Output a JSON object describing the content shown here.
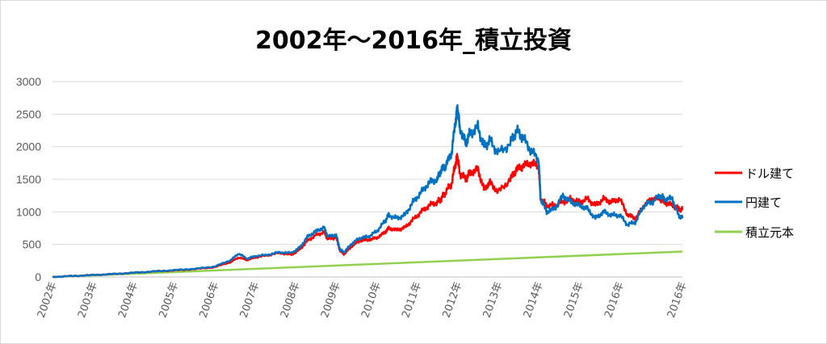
{
  "chart_data": {
    "type": "line",
    "title": "2002年～2016年_積立投資",
    "xlabel": "",
    "ylabel": "",
    "ylim": [
      0,
      3000
    ],
    "yticks": [
      "0",
      "500",
      "1000",
      "1500",
      "2000",
      "2500",
      "3000"
    ],
    "categories": [
      "2002年",
      "2003年",
      "2004年",
      "2005年",
      "2006年",
      "2007年",
      "2008年",
      "2009年",
      "2010年",
      "2011年",
      "2012年",
      "2013年",
      "2014年",
      "2015年",
      "2016年",
      "2016年"
    ],
    "grid": true,
    "legend_position": "right",
    "series": [
      {
        "name": "ドル建て",
        "color": "#ff0000",
        "points": [
          [
            0,
            0
          ],
          [
            0.5,
            15
          ],
          [
            1,
            30
          ],
          [
            1.5,
            45
          ],
          [
            2,
            65
          ],
          [
            2.5,
            85
          ],
          [
            3,
            100
          ],
          [
            3.5,
            120
          ],
          [
            4,
            150
          ],
          [
            4.4,
            230
          ],
          [
            4.6,
            300
          ],
          [
            4.8,
            260
          ],
          [
            5,
            300
          ],
          [
            5.3,
            330
          ],
          [
            5.6,
            370
          ],
          [
            5.9,
            340
          ],
          [
            6.1,
            420
          ],
          [
            6.3,
            560
          ],
          [
            6.5,
            640
          ],
          [
            6.7,
            690
          ],
          [
            6.8,
            580
          ],
          [
            7,
            610
          ],
          [
            7.1,
            400
          ],
          [
            7.2,
            350
          ],
          [
            7.4,
            480
          ],
          [
            7.6,
            560
          ],
          [
            7.8,
            570
          ],
          [
            8,
            600
          ],
          [
            8.2,
            680
          ],
          [
            8.3,
            750
          ],
          [
            8.5,
            720
          ],
          [
            8.7,
            760
          ],
          [
            8.9,
            880
          ],
          [
            9.1,
            1000
          ],
          [
            9.3,
            1100
          ],
          [
            9.5,
            1150
          ],
          [
            9.6,
            1200
          ],
          [
            9.7,
            1300
          ],
          [
            9.85,
            1430
          ],
          [
            9.95,
            1750
          ],
          [
            10,
            1850
          ],
          [
            10.05,
            1600
          ],
          [
            10.2,
            1500
          ],
          [
            10.3,
            1600
          ],
          [
            10.5,
            1650
          ],
          [
            10.65,
            1350
          ],
          [
            10.8,
            1450
          ],
          [
            11,
            1300
          ],
          [
            11.3,
            1500
          ],
          [
            11.45,
            1650
          ],
          [
            11.6,
            1700
          ],
          [
            11.8,
            1750
          ],
          [
            12,
            1700
          ],
          [
            12.05,
            1200
          ],
          [
            12.2,
            1100
          ],
          [
            12.4,
            1100
          ],
          [
            12.6,
            1150
          ],
          [
            12.8,
            1200
          ],
          [
            13,
            1150
          ],
          [
            13.2,
            1200
          ],
          [
            13.4,
            1100
          ],
          [
            13.6,
            1200
          ],
          [
            13.8,
            1150
          ],
          [
            14,
            1200
          ],
          [
            14.2,
            950
          ],
          [
            14.4,
            900
          ],
          [
            14.6,
            1100
          ],
          [
            14.8,
            1200
          ],
          [
            15,
            1200
          ],
          [
            15.1,
            1150
          ],
          [
            15.3,
            1100
          ],
          [
            15.45,
            1050
          ],
          [
            15.55,
            1030
          ]
        ]
      },
      {
        "name": "円建て",
        "color": "#0070c0",
        "points": [
          [
            0,
            0
          ],
          [
            0.5,
            15
          ],
          [
            1,
            30
          ],
          [
            1.5,
            45
          ],
          [
            2,
            65
          ],
          [
            2.5,
            85
          ],
          [
            3,
            105
          ],
          [
            3.5,
            125
          ],
          [
            4,
            160
          ],
          [
            4.4,
            260
          ],
          [
            4.6,
            360
          ],
          [
            4.8,
            280
          ],
          [
            5,
            320
          ],
          [
            5.3,
            340
          ],
          [
            5.6,
            380
          ],
          [
            5.9,
            370
          ],
          [
            6.1,
            450
          ],
          [
            6.3,
            620
          ],
          [
            6.5,
            700
          ],
          [
            6.7,
            760
          ],
          [
            6.8,
            620
          ],
          [
            7,
            650
          ],
          [
            7.1,
            420
          ],
          [
            7.2,
            380
          ],
          [
            7.4,
            520
          ],
          [
            7.6,
            600
          ],
          [
            7.8,
            620
          ],
          [
            8,
            700
          ],
          [
            8.2,
            850
          ],
          [
            8.3,
            950
          ],
          [
            8.5,
            900
          ],
          [
            8.7,
            950
          ],
          [
            8.9,
            1150
          ],
          [
            9.1,
            1300
          ],
          [
            9.3,
            1450
          ],
          [
            9.5,
            1500
          ],
          [
            9.6,
            1650
          ],
          [
            9.7,
            1700
          ],
          [
            9.85,
            1900
          ],
          [
            9.95,
            2400
          ],
          [
            10,
            2600
          ],
          [
            10.05,
            2300
          ],
          [
            10.2,
            2050
          ],
          [
            10.3,
            2200
          ],
          [
            10.5,
            2300
          ],
          [
            10.65,
            2000
          ],
          [
            10.8,
            2100
          ],
          [
            11,
            1900
          ],
          [
            11.3,
            2050
          ],
          [
            11.45,
            2250
          ],
          [
            11.6,
            2150
          ],
          [
            11.8,
            1950
          ],
          [
            12,
            1800
          ],
          [
            12.05,
            1200
          ],
          [
            12.2,
            1000
          ],
          [
            12.4,
            1050
          ],
          [
            12.6,
            1250
          ],
          [
            12.8,
            1150
          ],
          [
            13,
            1100
          ],
          [
            13.2,
            1050
          ],
          [
            13.4,
            900
          ],
          [
            13.6,
            1000
          ],
          [
            13.8,
            950
          ],
          [
            14,
            950
          ],
          [
            14.2,
            800
          ],
          [
            14.4,
            850
          ],
          [
            14.6,
            1100
          ],
          [
            14.8,
            1150
          ],
          [
            15,
            1250
          ],
          [
            15.1,
            1200
          ],
          [
            15.3,
            1200
          ],
          [
            15.45,
            950
          ],
          [
            15.55,
            900
          ]
        ]
      },
      {
        "name": "積立元本",
        "color": "#92d050",
        "points": [
          [
            0,
            0
          ],
          [
            15.55,
            390
          ]
        ]
      }
    ]
  }
}
